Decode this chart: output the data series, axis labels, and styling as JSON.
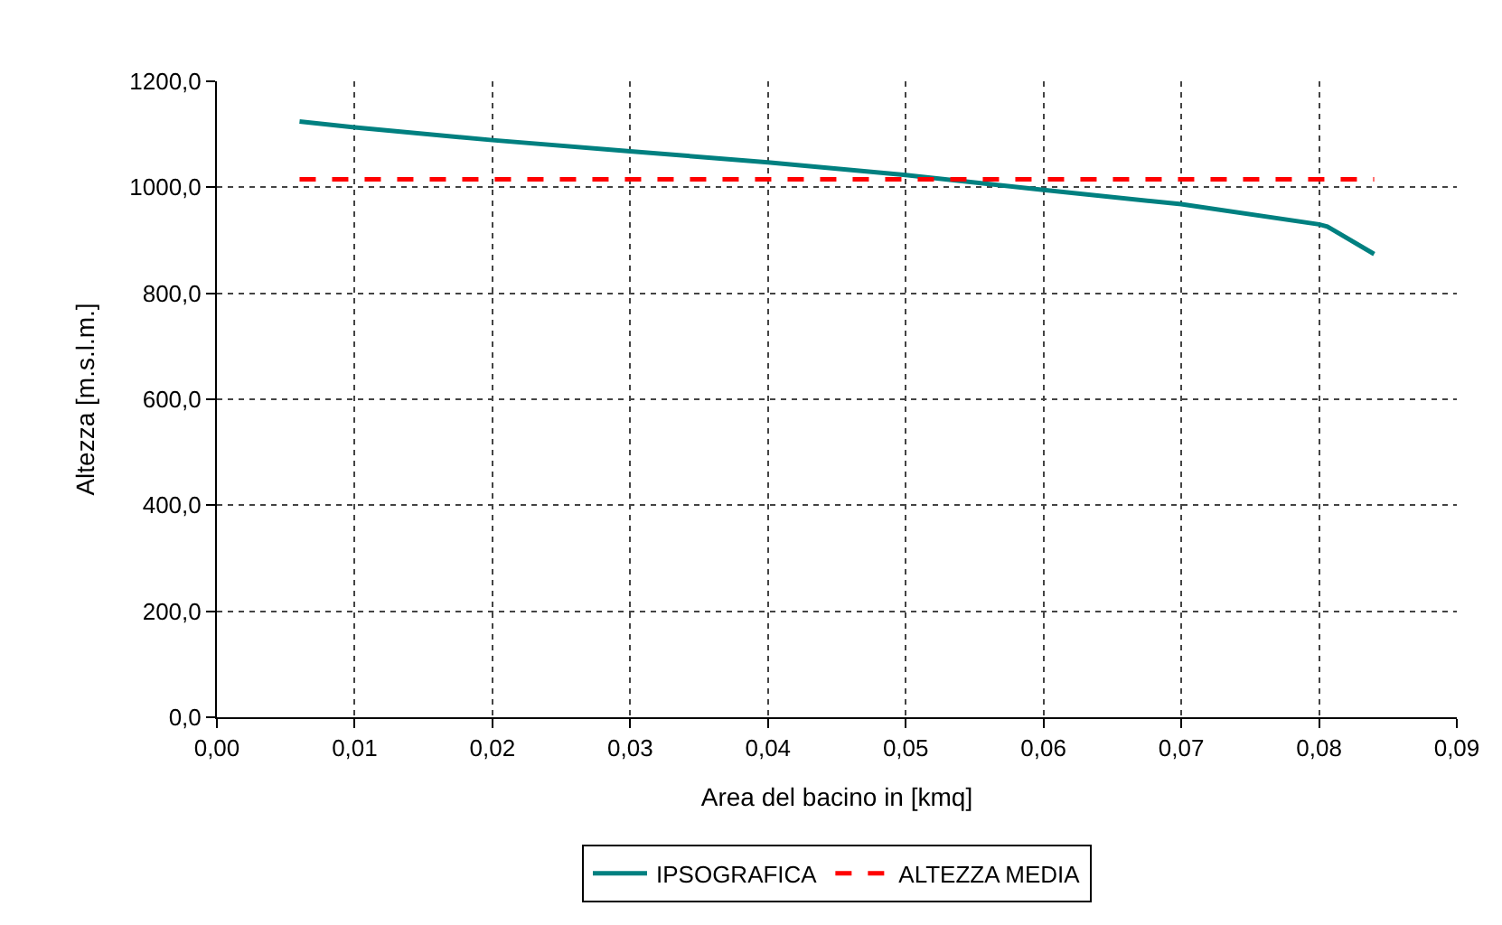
{
  "chart_data": {
    "type": "line",
    "xlabel": "Area del bacino in [kmq]",
    "ylabel": "Altezza [m.s.l.m.]",
    "xlim": [
      0,
      0.09
    ],
    "xticks": [
      {
        "value": 0,
        "label": "0,00"
      },
      {
        "value": 0.01,
        "label": "0,01"
      },
      {
        "value": 0.02,
        "label": "0,02"
      },
      {
        "value": 0.03,
        "label": "0,03"
      },
      {
        "value": 0.04,
        "label": "0,04"
      },
      {
        "value": 0.05,
        "label": "0,05"
      },
      {
        "value": 0.06,
        "label": "0,06"
      },
      {
        "value": 0.07,
        "label": "0,07"
      },
      {
        "value": 0.08,
        "label": "0,08"
      },
      {
        "value": 0.09,
        "label": "0,09"
      }
    ],
    "ylim": [
      0,
      1200
    ],
    "yticks": [
      {
        "value": 0,
        "label": "0,0"
      },
      {
        "value": 200,
        "label": "200,0"
      },
      {
        "value": 400,
        "label": "400,0"
      },
      {
        "value": 600,
        "label": "600,0"
      },
      {
        "value": 800,
        "label": "800,0"
      },
      {
        "value": 1000,
        "label": "1000,0"
      },
      {
        "value": 1200,
        "label": "1200,0"
      }
    ],
    "grid": true,
    "legend": "bottom",
    "marker": "none",
    "series": [
      {
        "name": "IPSOGRAFICA",
        "color": "#008080",
        "line_style": "solid",
        "x": [
          0.006,
          0.01,
          0.02,
          0.03,
          0.04,
          0.05,
          0.06,
          0.07,
          0.08,
          0.0806,
          0.084
        ],
        "values": [
          1124,
          1113,
          1089,
          1068,
          1047,
          1023,
          995,
          968,
          930,
          926,
          874
        ]
      },
      {
        "name": "ALTEZZA MEDIA",
        "color": "#ff0000",
        "line_style": "dashed",
        "x": [
          0.006,
          0.084
        ],
        "values": [
          1015,
          1015
        ]
      }
    ]
  }
}
